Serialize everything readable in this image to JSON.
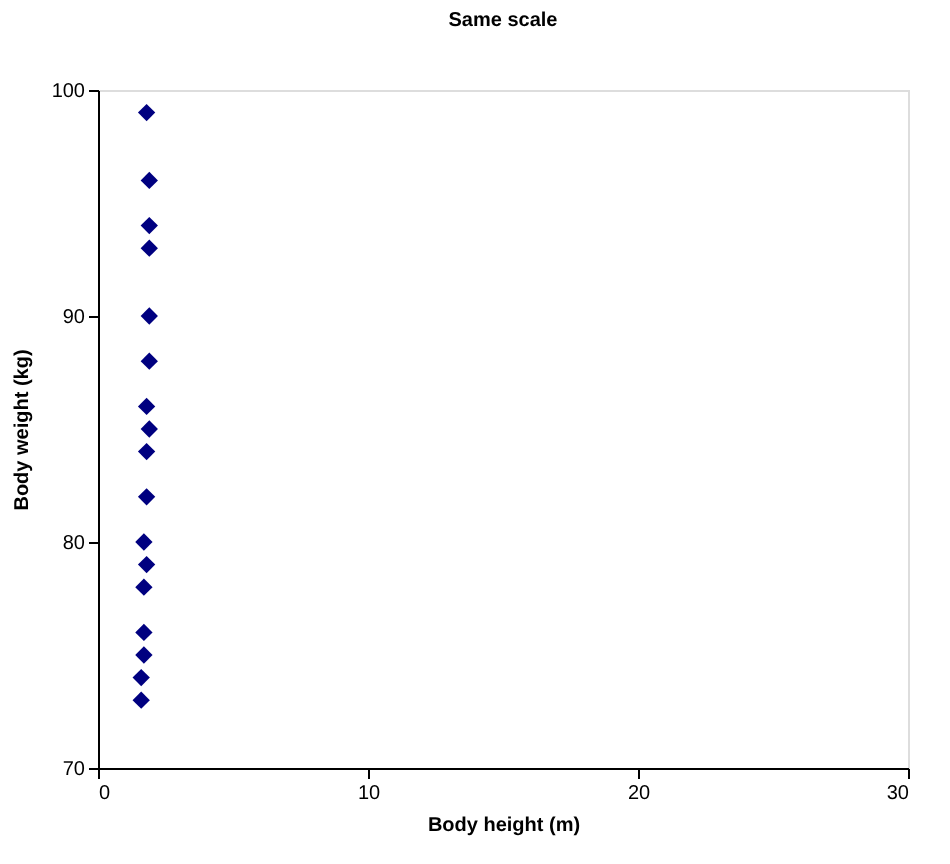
{
  "chart_data": {
    "type": "scatter",
    "title": "Same scale",
    "xlabel": "Body height (m)",
    "ylabel": "Body weight (kg)",
    "x": [
      1.8,
      1.9,
      1.9,
      1.9,
      1.9,
      1.9,
      1.8,
      1.9,
      1.8,
      1.8,
      1.7,
      1.8,
      1.7,
      1.7,
      1.7,
      1.6,
      1.6
    ],
    "series": [
      {
        "color": "#000080",
        "values": [
          99,
          96,
          94,
          93,
          90,
          88,
          86,
          85,
          84,
          82,
          80,
          79,
          78,
          76,
          75,
          74,
          73
        ]
      }
    ],
    "xlim": [
      0,
      30
    ],
    "ylim": [
      70,
      100
    ],
    "xticks": [
      0,
      10,
      20,
      30
    ],
    "yticks": [
      70,
      80,
      90,
      100
    ],
    "marker": "diamond",
    "grid": false
  }
}
